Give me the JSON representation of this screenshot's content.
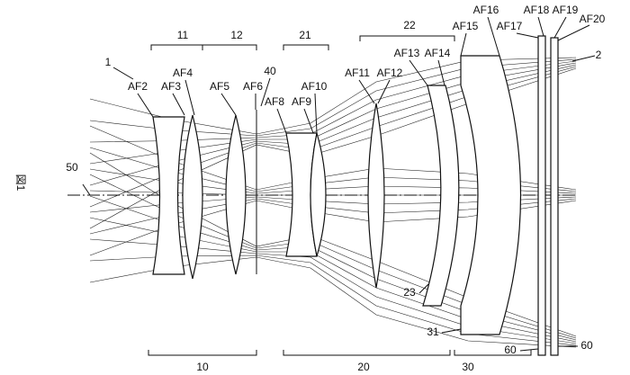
{
  "figure_label": "図1",
  "surface_labels": [
    "AF2",
    "AF3",
    "AF4",
    "AF5",
    "AF6",
    "AF8",
    "AF9",
    "AF10",
    "AF11",
    "AF12",
    "AF13",
    "AF14",
    "AF15",
    "AF16",
    "AF17",
    "AF18",
    "AF19",
    "AF20"
  ],
  "reference_numerals": [
    "1",
    "11",
    "12",
    "21",
    "22",
    "40",
    "50",
    "2",
    "23",
    "31",
    "60",
    "60",
    "10",
    "20",
    "30"
  ]
}
